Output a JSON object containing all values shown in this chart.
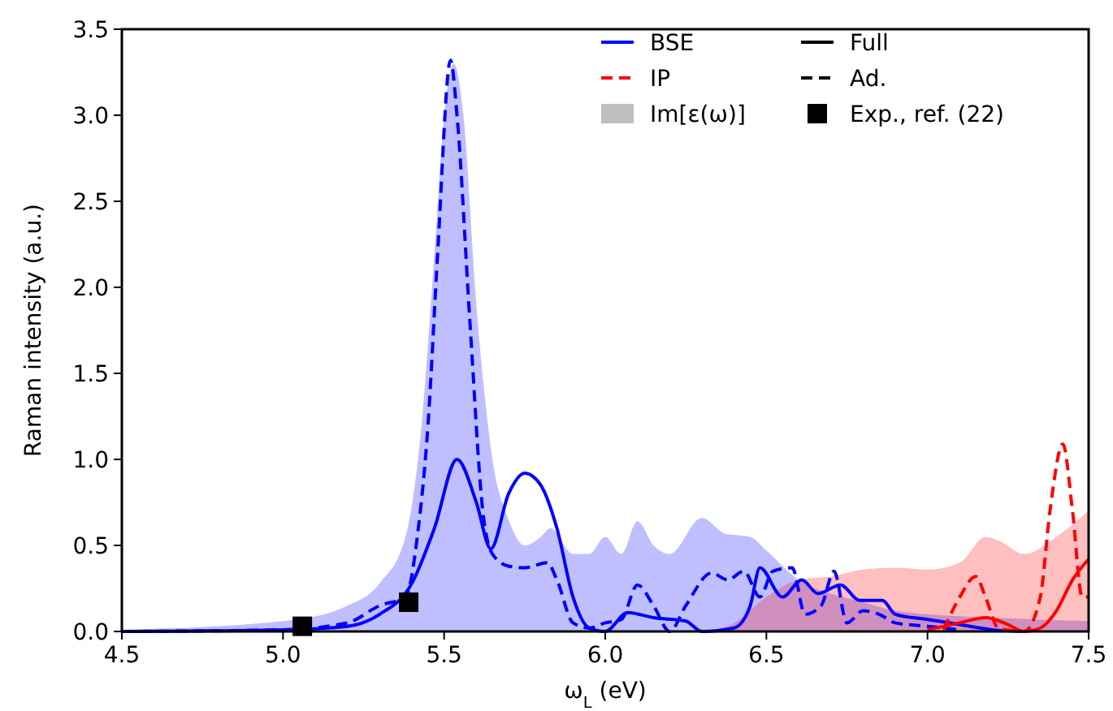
{
  "chart_data": {
    "type": "line",
    "xlabel": "ω$_{L}$ (eV)",
    "ylabel": "Raman intensity (a.u.)",
    "xlim": [
      4.5,
      7.5
    ],
    "ylim": [
      0,
      3.5
    ],
    "xticks": [
      4.5,
      {
        "value": 5,
        "label": "5.0"
      },
      5.5,
      {
        "value": 6,
        "label": "6.0"
      },
      6.5,
      {
        "value": 7,
        "label": "7.0"
      },
      7.5
    ],
    "yticks": [
      {
        "value": 0,
        "label": "0.0"
      },
      0.5,
      {
        "value": 1,
        "label": "1.0"
      },
      1.5,
      {
        "value": 2,
        "label": "2.0"
      },
      2.5,
      {
        "value": 3,
        "label": "3.0"
      },
      3.5
    ],
    "grid": false,
    "legend": "top right",
    "series": [
      {
        "type": "area",
        "color": "#0000ff",
        "x": [
          4.5,
          5.0,
          5.2,
          5.3,
          5.38,
          5.43,
          5.47,
          5.5,
          5.53,
          5.56,
          5.6,
          5.65,
          5.7,
          5.75,
          5.8,
          5.83,
          5.9,
          5.95,
          6.0,
          6.05,
          6.1,
          6.15,
          6.2,
          6.3,
          6.37,
          6.45,
          6.5,
          6.6,
          6.7,
          6.8,
          6.9,
          7.0,
          7.2,
          7.5
        ],
        "values": [
          0.01,
          0.06,
          0.15,
          0.28,
          0.55,
          1.2,
          2.2,
          3.0,
          3.3,
          3.0,
          1.9,
          1.0,
          0.65,
          0.5,
          0.55,
          0.6,
          0.45,
          0.45,
          0.55,
          0.45,
          0.64,
          0.5,
          0.45,
          0.66,
          0.57,
          0.55,
          0.47,
          0.3,
          0.22,
          0.17,
          0.12,
          0.1,
          0.08,
          0.06
        ]
      },
      {
        "type": "area",
        "color": "#ff0000",
        "x": [
          6.3,
          6.4,
          6.5,
          6.6,
          6.7,
          6.8,
          6.9,
          7.0,
          7.1,
          7.18,
          7.22,
          7.3,
          7.4,
          7.5
        ],
        "values": [
          0,
          0.05,
          0.2,
          0.3,
          0.32,
          0.36,
          0.37,
          0.36,
          0.4,
          0.55,
          0.53,
          0.45,
          0.55,
          0.7
        ]
      },
      {
        "name": "BSE",
        "color": "#0000ff",
        "line_style": "solid",
        "x": [
          4.5,
          5.0,
          5.2,
          5.3,
          5.4,
          5.47,
          5.54,
          5.6,
          5.645,
          5.7,
          5.75,
          5.8,
          5.85,
          5.9,
          5.95,
          6.0,
          6.07,
          6.15,
          6.25,
          6.3,
          6.4,
          6.45,
          6.48,
          6.55,
          6.61,
          6.66,
          6.73,
          6.79,
          6.86,
          6.9,
          7.0,
          7.1,
          7.2,
          7.3
        ],
        "values": [
          0,
          0.01,
          0.03,
          0.1,
          0.28,
          0.6,
          1.0,
          0.75,
          0.48,
          0.8,
          0.92,
          0.85,
          0.6,
          0.2,
          0.02,
          0,
          0.11,
          0.08,
          0.06,
          0,
          0.02,
          0.15,
          0.37,
          0.2,
          0.3,
          0.22,
          0.27,
          0.18,
          0.18,
          0.1,
          0.07,
          0.04,
          0.01,
          0
        ]
      },
      {
        "color": "#0000ff",
        "line_style": "dashed",
        "x": [
          4.5,
          5.0,
          5.2,
          5.3,
          5.38,
          5.42,
          5.45,
          5.48,
          5.52,
          5.54,
          5.58,
          5.62,
          5.65,
          5.7,
          5.75,
          5.82,
          5.85,
          5.9,
          5.95,
          6.0,
          6.05,
          6.1,
          6.15,
          6.2,
          6.25,
          6.33,
          6.38,
          6.43,
          6.48,
          6.52,
          6.58,
          6.62,
          6.67,
          6.71,
          6.75,
          6.8,
          6.85,
          6.9,
          7.0,
          7.1
        ],
        "values": [
          0,
          0.01,
          0.05,
          0.15,
          0.2,
          0.6,
          1.2,
          2.2,
          3.32,
          3.0,
          1.8,
          0.7,
          0.45,
          0.38,
          0.37,
          0.4,
          0.3,
          0.05,
          0.02,
          0.05,
          0.07,
          0.27,
          0.15,
          0,
          0.15,
          0.34,
          0.3,
          0.35,
          0.2,
          0.35,
          0.37,
          0.1,
          0.15,
          0.35,
          0.05,
          0.12,
          0.1,
          0.05,
          0.03,
          0.01
        ]
      },
      {
        "color": "#ff0000",
        "line_style": "solid",
        "x": [
          7.0,
          7.1,
          7.18,
          7.25,
          7.3,
          7.35,
          7.4,
          7.45,
          7.5
        ],
        "values": [
          0.01,
          0.05,
          0.08,
          0.04,
          0,
          0.02,
          0.12,
          0.3,
          0.42
        ]
      },
      {
        "name": "IP",
        "color": "#ff0000",
        "line_style": "dashed",
        "x": [
          7.05,
          7.1,
          7.15,
          7.18,
          7.22,
          7.3,
          7.35,
          7.38,
          7.42,
          7.45,
          7.48,
          7.5
        ],
        "values": [
          0.01,
          0.2,
          0.32,
          0.2,
          0.02,
          0,
          0.2,
          0.7,
          1.09,
          0.7,
          0.2,
          0.2
        ]
      },
      {
        "name": "Im[ε(ω)]",
        "type": "area",
        "color": "#bfbfbf"
      },
      {
        "name": "Full",
        "color": "#000000",
        "line_style": "solid"
      },
      {
        "name": "Ad.",
        "color": "#000000",
        "line_style": "dashed"
      },
      {
        "name": "Exp., ref. (22)",
        "type": "scatter",
        "marker": "square",
        "color": "#000000",
        "x": [
          5.06,
          5.39
        ],
        "values": [
          0.03,
          0.17
        ]
      }
    ]
  }
}
